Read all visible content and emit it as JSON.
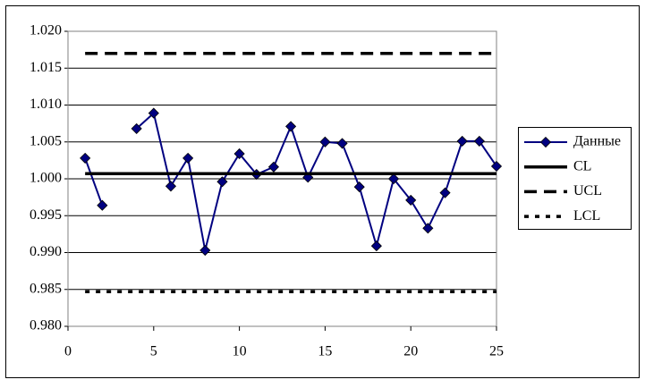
{
  "chart_data": {
    "type": "line",
    "x": [
      1,
      2,
      3,
      4,
      5,
      6,
      7,
      8,
      9,
      10,
      11,
      12,
      13,
      14,
      15,
      16,
      17,
      18,
      19,
      20,
      21,
      22,
      23,
      24,
      25
    ],
    "series": [
      {
        "name": "Данные",
        "color": "#000080",
        "marker": "diamond",
        "style": "solid",
        "values": [
          1.0028,
          0.9964,
          null,
          1.0068,
          1.0089,
          0.999,
          1.0028,
          0.9903,
          0.9996,
          1.0034,
          1.0006,
          1.0016,
          1.0071,
          1.0002,
          1.005,
          1.0048,
          0.9989,
          0.9909,
          1.0,
          0.9971,
          0.9933,
          0.9981,
          1.0051,
          1.0051,
          1.0017
        ]
      },
      {
        "name": "CL",
        "color": "#000000",
        "style": "solid",
        "x": [
          1,
          25
        ],
        "values": [
          1.0007,
          1.0007
        ]
      },
      {
        "name": "UCL",
        "color": "#000000",
        "style": "dashed",
        "x": [
          1,
          25
        ],
        "values": [
          1.017,
          1.017
        ]
      },
      {
        "name": "LCL",
        "color": "#000000",
        "style": "dotted",
        "x": [
          1,
          25
        ],
        "values": [
          0.9847,
          0.9847
        ]
      }
    ],
    "xlim": [
      0,
      25
    ],
    "xticks": [
      0,
      5,
      10,
      15,
      20,
      25
    ],
    "ylim": [
      0.98,
      1.02
    ],
    "yticks": [
      {
        "value": 0.98,
        "label": "0.980"
      },
      0.985,
      {
        "value": 0.99,
        "label": "0.990"
      },
      0.995,
      {
        "value": 1.0,
        "label": "1.000"
      },
      1.005,
      {
        "value": 1.01,
        "label": "1.010"
      },
      1.015,
      {
        "value": 1.02,
        "label": "1.020"
      }
    ],
    "grid": true,
    "legend": "right"
  }
}
